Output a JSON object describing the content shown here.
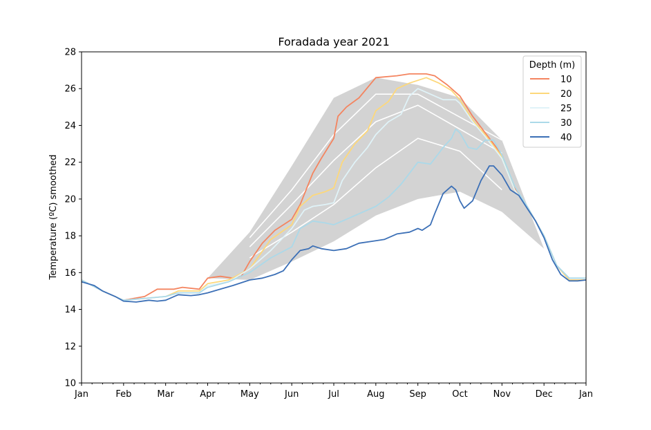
{
  "chart_data": {
    "type": "line",
    "title": "Foradada year 2021",
    "xlabel": "",
    "ylabel": "Temperature (ºC) smoothed",
    "ylim": [
      10,
      28
    ],
    "yticks": [
      10,
      12,
      14,
      16,
      18,
      20,
      22,
      24,
      26,
      28
    ],
    "xlim": [
      0,
      12
    ],
    "xticks": [
      {
        "x": 0,
        "label": "Jan"
      },
      {
        "x": 1,
        "label": "Feb"
      },
      {
        "x": 2,
        "label": "Mar"
      },
      {
        "x": 3,
        "label": "Apr"
      },
      {
        "x": 4,
        "label": "May"
      },
      {
        "x": 5,
        "label": "Jun"
      },
      {
        "x": 6,
        "label": "Jul"
      },
      {
        "x": 7,
        "label": "Aug"
      },
      {
        "x": 8,
        "label": "Sep"
      },
      {
        "x": 9,
        "label": "Oct"
      },
      {
        "x": 10,
        "label": "Nov"
      },
      {
        "x": 11,
        "label": "Dec"
      },
      {
        "x": 12,
        "label": "Jan"
      }
    ],
    "grid": false,
    "legend": {
      "title": "Depth (m)",
      "placement": "top-right"
    },
    "climatology_band": {
      "color": "#d3d3d3",
      "upper": [
        [
          3,
          15.7
        ],
        [
          4,
          18.2
        ],
        [
          5,
          21.8
        ],
        [
          6,
          25.5
        ],
        [
          7,
          26.6
        ],
        [
          8,
          26.2
        ],
        [
          9,
          25.5
        ],
        [
          10,
          23.2
        ],
        [
          11,
          17.3
        ]
      ],
      "lower": [
        [
          11,
          17.3
        ],
        [
          10,
          19.3
        ],
        [
          9,
          20.4
        ],
        [
          8,
          20.0
        ],
        [
          7,
          19.1
        ],
        [
          6,
          17.7
        ],
        [
          5,
          16.6
        ],
        [
          4,
          15.6
        ],
        [
          3,
          15.7
        ]
      ]
    },
    "climatology_lines": [
      {
        "color": "#ffffff",
        "points": [
          [
            4,
            17.9
          ],
          [
            5,
            20.5
          ],
          [
            6,
            23.5
          ],
          [
            7,
            25.7
          ],
          [
            8,
            25.7
          ],
          [
            10,
            23.2
          ]
        ]
      },
      {
        "color": "#ffffff",
        "points": [
          [
            4,
            17.4
          ],
          [
            5,
            19.7
          ],
          [
            6,
            22.1
          ],
          [
            7,
            24.2
          ],
          [
            8,
            25.1
          ],
          [
            10,
            22.5
          ]
        ]
      },
      {
        "color": "#ffffff",
        "points": [
          [
            4,
            16.8
          ],
          [
            5,
            18.2
          ],
          [
            6,
            19.7
          ],
          [
            7,
            21.7
          ],
          [
            8,
            23.3
          ],
          [
            9,
            22.6
          ],
          [
            10,
            20.5
          ]
        ]
      }
    ],
    "series": [
      {
        "name": "10",
        "color": "#f4845f",
        "points": [
          [
            0,
            15.6
          ],
          [
            0.5,
            15.0
          ],
          [
            1,
            14.5
          ],
          [
            1.5,
            14.7
          ],
          [
            1.8,
            15.1
          ],
          [
            2.2,
            15.1
          ],
          [
            2.4,
            15.2
          ],
          [
            2.8,
            15.1
          ],
          [
            3.0,
            15.7
          ],
          [
            3.3,
            15.8
          ],
          [
            3.6,
            15.7
          ],
          [
            3.8,
            15.8
          ],
          [
            4.0,
            16.6
          ],
          [
            4.3,
            17.6
          ],
          [
            4.6,
            18.3
          ],
          [
            5.0,
            18.9
          ],
          [
            5.2,
            19.7
          ],
          [
            5.5,
            21.4
          ],
          [
            5.7,
            22.2
          ],
          [
            6.0,
            23.3
          ],
          [
            6.1,
            24.5
          ],
          [
            6.3,
            25.0
          ],
          [
            6.6,
            25.5
          ],
          [
            7.0,
            26.6
          ],
          [
            7.5,
            26.7
          ],
          [
            7.8,
            26.8
          ],
          [
            8.2,
            26.8
          ],
          [
            8.4,
            26.7
          ],
          [
            8.7,
            26.2
          ],
          [
            9.0,
            25.6
          ],
          [
            9.3,
            24.5
          ],
          [
            9.6,
            23.6
          ],
          [
            10.0,
            22.4
          ],
          [
            10.3,
            20.6
          ],
          [
            10.6,
            19.6
          ],
          [
            11.0,
            18.0
          ],
          [
            11.3,
            16.4
          ],
          [
            11.6,
            15.6
          ],
          [
            12,
            15.6
          ]
        ]
      },
      {
        "name": "20",
        "color": "#fdd87a",
        "points": [
          [
            0,
            15.6
          ],
          [
            0.5,
            15.0
          ],
          [
            1,
            14.5
          ],
          [
            1.5,
            14.6
          ],
          [
            2.0,
            14.7
          ],
          [
            2.3,
            15.0
          ],
          [
            2.8,
            15.0
          ],
          [
            3.0,
            15.4
          ],
          [
            3.5,
            15.6
          ],
          [
            4.0,
            16.2
          ],
          [
            4.5,
            17.8
          ],
          [
            5.0,
            18.6
          ],
          [
            5.2,
            19.6
          ],
          [
            5.5,
            20.2
          ],
          [
            5.8,
            20.4
          ],
          [
            6.0,
            20.6
          ],
          [
            6.2,
            22.0
          ],
          [
            6.5,
            23.0
          ],
          [
            6.8,
            23.7
          ],
          [
            7.0,
            24.8
          ],
          [
            7.3,
            25.3
          ],
          [
            7.5,
            26.0
          ],
          [
            7.8,
            26.3
          ],
          [
            8.2,
            26.6
          ],
          [
            8.5,
            26.3
          ],
          [
            8.8,
            25.9
          ],
          [
            9.0,
            25.4
          ],
          [
            9.3,
            24.3
          ],
          [
            9.6,
            23.5
          ],
          [
            10.0,
            22.3
          ],
          [
            10.3,
            20.5
          ],
          [
            10.6,
            19.6
          ],
          [
            11.0,
            18.0
          ],
          [
            11.3,
            16.4
          ],
          [
            11.6,
            15.6
          ],
          [
            12,
            15.6
          ]
        ]
      },
      {
        "name": "25",
        "color": "#e0f3f8",
        "points": [
          [
            0,
            15.6
          ],
          [
            0.5,
            15.0
          ],
          [
            1,
            14.5
          ],
          [
            1.5,
            14.6
          ],
          [
            2.0,
            14.7
          ],
          [
            2.3,
            14.9
          ],
          [
            2.8,
            14.9
          ],
          [
            3.0,
            15.3
          ],
          [
            3.5,
            15.5
          ],
          [
            4.0,
            16.2
          ],
          [
            4.5,
            17.2
          ],
          [
            5.0,
            18.4
          ],
          [
            5.3,
            19.4
          ],
          [
            5.5,
            19.6
          ],
          [
            5.8,
            19.7
          ],
          [
            6.0,
            19.8
          ],
          [
            6.2,
            21.0
          ],
          [
            6.5,
            22.0
          ],
          [
            6.8,
            22.8
          ],
          [
            7.0,
            23.5
          ],
          [
            7.3,
            24.2
          ],
          [
            7.6,
            24.6
          ],
          [
            7.8,
            25.6
          ],
          [
            8.0,
            26.0
          ],
          [
            8.3,
            25.7
          ],
          [
            8.6,
            25.4
          ],
          [
            8.9,
            25.4
          ],
          [
            9.0,
            25.2
          ],
          [
            9.3,
            24.2
          ],
          [
            9.6,
            23.4
          ],
          [
            10.0,
            22.2
          ],
          [
            10.3,
            20.5
          ],
          [
            10.6,
            19.6
          ],
          [
            11.0,
            18.0
          ],
          [
            11.3,
            16.4
          ],
          [
            11.6,
            15.7
          ],
          [
            12,
            15.7
          ]
        ]
      },
      {
        "name": "30",
        "color": "#abd9e9",
        "points": [
          [
            0,
            15.6
          ],
          [
            0.5,
            15.0
          ],
          [
            1,
            14.5
          ],
          [
            1.5,
            14.6
          ],
          [
            2.0,
            14.7
          ],
          [
            2.3,
            14.9
          ],
          [
            2.8,
            14.9
          ],
          [
            3.0,
            15.2
          ],
          [
            3.5,
            15.5
          ],
          [
            4.0,
            16.0
          ],
          [
            4.5,
            16.8
          ],
          [
            5.0,
            17.4
          ],
          [
            5.2,
            18.4
          ],
          [
            5.5,
            18.8
          ],
          [
            5.8,
            18.7
          ],
          [
            6.0,
            18.6
          ],
          [
            6.3,
            18.9
          ],
          [
            6.6,
            19.2
          ],
          [
            7.0,
            19.6
          ],
          [
            7.3,
            20.1
          ],
          [
            7.6,
            20.8
          ],
          [
            8.0,
            22.0
          ],
          [
            8.3,
            21.9
          ],
          [
            8.6,
            22.8
          ],
          [
            8.8,
            23.3
          ],
          [
            8.9,
            23.8
          ],
          [
            9.0,
            23.6
          ],
          [
            9.2,
            22.8
          ],
          [
            9.4,
            22.7
          ],
          [
            9.6,
            23.2
          ],
          [
            9.8,
            23.2
          ],
          [
            10.0,
            22.4
          ],
          [
            10.3,
            20.7
          ],
          [
            10.6,
            19.6
          ],
          [
            11.0,
            18.0
          ],
          [
            11.3,
            16.4
          ],
          [
            11.6,
            15.7
          ],
          [
            12,
            15.7
          ]
        ]
      },
      {
        "name": "40",
        "color": "#3b6fb6",
        "points": [
          [
            0,
            15.5
          ],
          [
            0.3,
            15.3
          ],
          [
            0.5,
            15.0
          ],
          [
            0.8,
            14.7
          ],
          [
            1.0,
            14.45
          ],
          [
            1.3,
            14.4
          ],
          [
            1.6,
            14.5
          ],
          [
            1.8,
            14.45
          ],
          [
            2.0,
            14.5
          ],
          [
            2.3,
            14.8
          ],
          [
            2.6,
            14.75
          ],
          [
            2.8,
            14.8
          ],
          [
            3.0,
            14.9
          ],
          [
            3.3,
            15.1
          ],
          [
            3.6,
            15.3
          ],
          [
            4.0,
            15.6
          ],
          [
            4.3,
            15.7
          ],
          [
            4.6,
            15.9
          ],
          [
            4.8,
            16.1
          ],
          [
            5.0,
            16.7
          ],
          [
            5.2,
            17.2
          ],
          [
            5.4,
            17.3
          ],
          [
            5.5,
            17.45
          ],
          [
            5.7,
            17.3
          ],
          [
            6.0,
            17.2
          ],
          [
            6.3,
            17.3
          ],
          [
            6.6,
            17.6
          ],
          [
            6.9,
            17.7
          ],
          [
            7.2,
            17.8
          ],
          [
            7.5,
            18.1
          ],
          [
            7.8,
            18.2
          ],
          [
            8.0,
            18.4
          ],
          [
            8.1,
            18.3
          ],
          [
            8.3,
            18.6
          ],
          [
            8.4,
            19.2
          ],
          [
            8.6,
            20.3
          ],
          [
            8.8,
            20.7
          ],
          [
            8.9,
            20.5
          ],
          [
            9.0,
            19.9
          ],
          [
            9.1,
            19.5
          ],
          [
            9.3,
            19.9
          ],
          [
            9.5,
            21.0
          ],
          [
            9.7,
            21.8
          ],
          [
            9.8,
            21.8
          ],
          [
            10.0,
            21.3
          ],
          [
            10.2,
            20.5
          ],
          [
            10.4,
            20.2
          ],
          [
            10.6,
            19.5
          ],
          [
            10.8,
            18.8
          ],
          [
            11.0,
            17.9
          ],
          [
            11.2,
            16.7
          ],
          [
            11.4,
            15.9
          ],
          [
            11.6,
            15.55
          ],
          [
            11.8,
            15.55
          ],
          [
            12,
            15.6
          ]
        ]
      }
    ]
  }
}
